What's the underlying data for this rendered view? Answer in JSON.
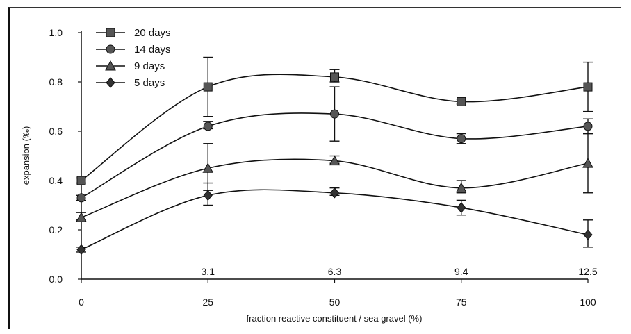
{
  "chart_data": {
    "type": "line",
    "title": "",
    "xlabel": "fraction reactive constituent / sea gravel (%)",
    "ylabel": "expansion (‰)",
    "x": [
      0,
      25,
      50,
      75,
      100
    ],
    "secondary_x_ticks": [
      {
        "at": 25,
        "label": "3.1"
      },
      {
        "at": 50,
        "label": "6.3"
      },
      {
        "at": 75,
        "label": "9.4"
      },
      {
        "at": 100,
        "label": "12.5"
      }
    ],
    "xlim": [
      0,
      100
    ],
    "ylim": [
      0,
      1.0
    ],
    "x_ticks": [
      "0",
      "25",
      "50",
      "75",
      "100"
    ],
    "y_ticks": [
      "0.0",
      "0.2",
      "0.4",
      "0.6",
      "0.8",
      "1.0"
    ],
    "grid": false,
    "legend_position": "top-left",
    "series": [
      {
        "name": "20 days",
        "marker": "square",
        "values": [
          0.4,
          0.78,
          0.82,
          0.72,
          0.78
        ],
        "err_low": [
          0.39,
          0.66,
          0.8,
          0.71,
          0.68
        ],
        "err_high": [
          0.41,
          0.9,
          0.85,
          0.73,
          0.88
        ]
      },
      {
        "name": "14 days",
        "marker": "circle",
        "values": [
          0.33,
          0.62,
          0.67,
          0.57,
          0.62
        ],
        "err_low": [
          0.32,
          0.61,
          0.56,
          0.55,
          0.59
        ],
        "err_high": [
          0.34,
          0.64,
          0.78,
          0.59,
          0.65
        ]
      },
      {
        "name": "9 days",
        "marker": "triangle",
        "values": [
          0.25,
          0.45,
          0.48,
          0.37,
          0.47
        ],
        "err_low": [
          0.24,
          0.36,
          0.47,
          0.35,
          0.35
        ],
        "err_high": [
          0.27,
          0.55,
          0.5,
          0.4,
          0.59
        ]
      },
      {
        "name": "5 days",
        "marker": "diamond",
        "values": [
          0.12,
          0.34,
          0.35,
          0.29,
          0.18
        ],
        "err_low": [
          0.11,
          0.3,
          0.34,
          0.26,
          0.13
        ],
        "err_high": [
          0.13,
          0.39,
          0.37,
          0.32,
          0.24
        ]
      }
    ]
  }
}
